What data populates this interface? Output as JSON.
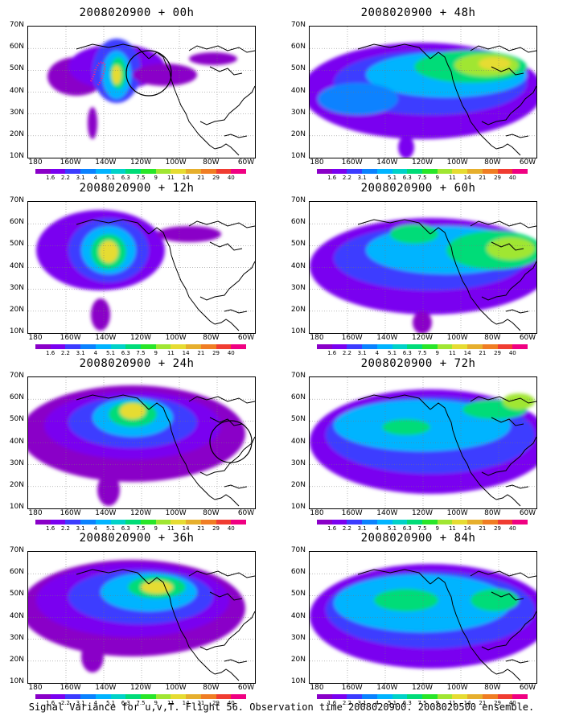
{
  "panels": [
    {
      "title": "2008020900 + 00h",
      "colorbar": true
    },
    {
      "title": "2008020900 + 48h",
      "colorbar": true
    },
    {
      "title": "2008020900 + 12h",
      "colorbar": true
    },
    {
      "title": "2008020900 + 60h",
      "colorbar": true
    },
    {
      "title": "2008020900 + 24h",
      "colorbar": true
    },
    {
      "title": "2008020900 + 72h",
      "colorbar": true
    },
    {
      "title": "2008020900 + 36h",
      "colorbar": true
    },
    {
      "title": "2008020900 + 84h",
      "colorbar": true
    }
  ],
  "lat_labels": [
    "70N",
    "60N",
    "50N",
    "40N",
    "30N",
    "20N",
    "10N"
  ],
  "lon_labels": [
    "180",
    "160W",
    "140W",
    "120W",
    "100W",
    "80W",
    "60W"
  ],
  "colorbar": {
    "levels": [
      "1.6",
      "2.2",
      "3.1",
      "4",
      "5.1",
      "6.3",
      "7.5",
      "9",
      "11",
      "14",
      "21",
      "29",
      "40"
    ],
    "colors": [
      "#8a00c8",
      "#7a00f0",
      "#3c3cff",
      "#0a82ff",
      "#00b4ff",
      "#00d2c8",
      "#00dc78",
      "#28e628",
      "#a0e632",
      "#e6dc32",
      "#e6af2d",
      "#f07d23",
      "#f03c32",
      "#f00082"
    ]
  },
  "footer": "Signal Variance for u,v,T. Flight 56. Observation time 2008020900. 2008020500 ensemble."
}
